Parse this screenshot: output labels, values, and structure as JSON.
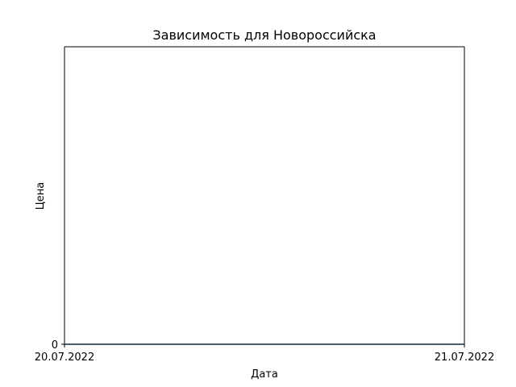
{
  "chart_data": {
    "type": "line",
    "title": "Зависимость для Новороссийска",
    "xlabel": "Дата",
    "ylabel": "Цена",
    "x_ticks": [
      "20.07.2022",
      "21.07.2022"
    ],
    "y_ticks": [
      "0"
    ],
    "x": [
      "20.07.2022",
      "21.07.2022"
    ],
    "series": [
      {
        "values": [
          0,
          0
        ],
        "color": "#1f77b4"
      }
    ],
    "ylim": [
      0,
      1
    ],
    "grid": false,
    "line_color": "#1f77b4"
  }
}
